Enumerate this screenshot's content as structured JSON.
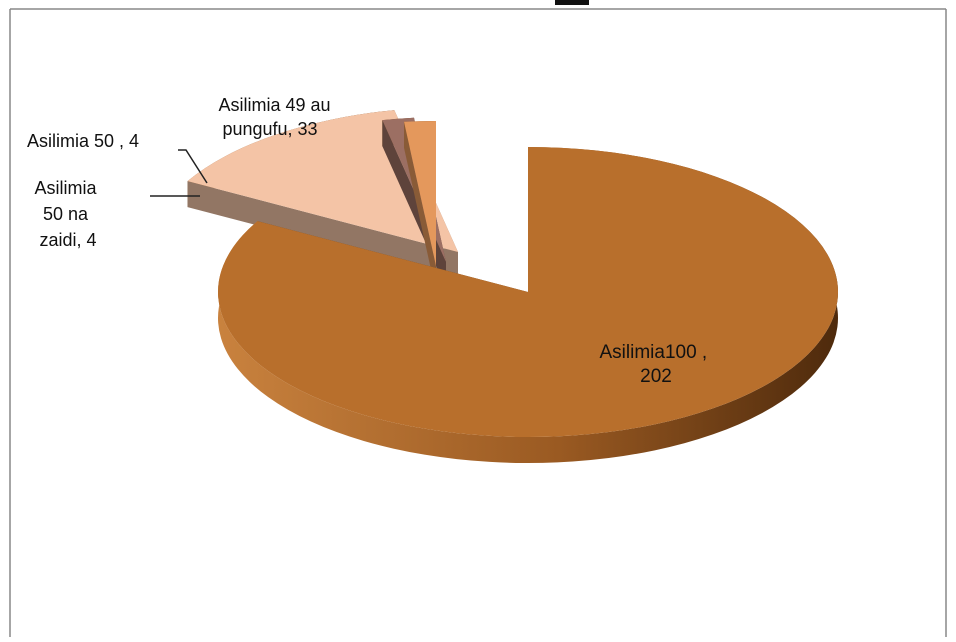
{
  "chart_data": {
    "type": "pie",
    "title": "",
    "slices": [
      {
        "label": "Asilimia100 , 202",
        "category": "Asilimia100",
        "value": 202,
        "color": "#b86f2c",
        "exploded": false
      },
      {
        "label": "Asilimia 49 au pungufu, 33",
        "category": "Asilimia 49 au pungufu",
        "value": 33,
        "color": "#f4c4a6",
        "exploded": true
      },
      {
        "label": "Asilimia 50 , 4",
        "category": "Asilimia 50",
        "value": 4,
        "color": "#9c6f63",
        "exploded": true
      },
      {
        "label": "Asilimia 50 na zaidi, 4",
        "category": "Asilimia 50 na zaidi",
        "value": 4,
        "color": "#e4985c",
        "exploded": true
      }
    ],
    "style": "3d-exploded-pie",
    "legend": "none"
  },
  "labels": {
    "big_line1": "Asilimia100 ,",
    "big_line2": "202",
    "p49_line1": "Asilimia 49 au",
    "p49_line2": "pungufu, 33",
    "p50_line1": "Asilimia 50 , 4",
    "p50z_line1": "Asilimia",
    "p50z_line2": "50 na",
    "p50z_line3": "zaidi, 4"
  }
}
